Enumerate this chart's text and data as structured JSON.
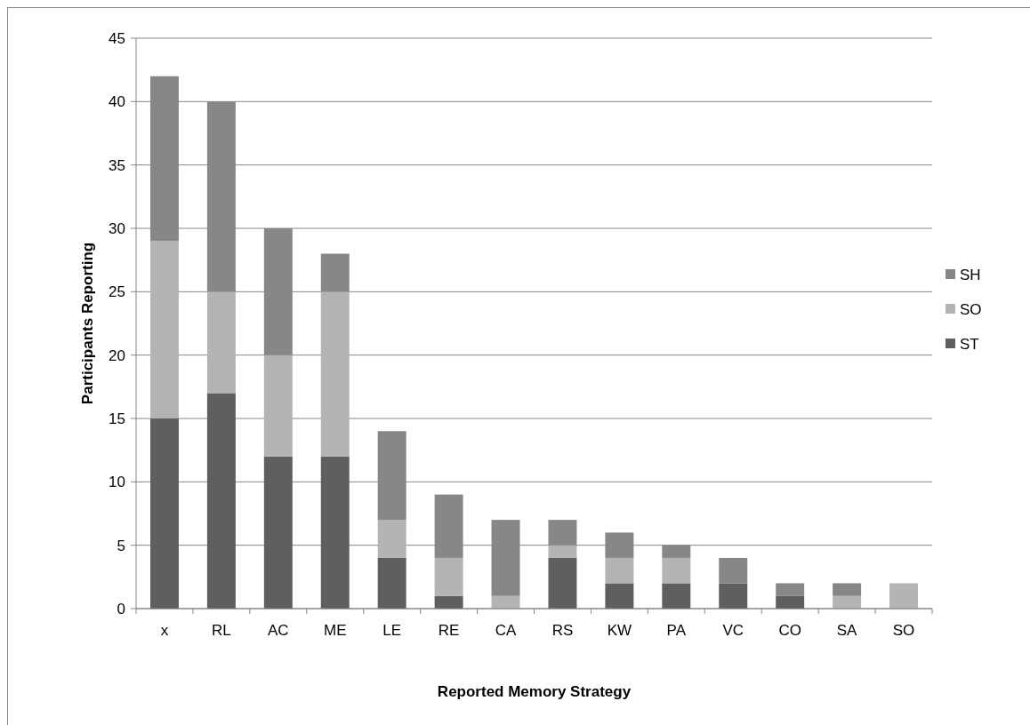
{
  "chart_data": {
    "type": "bar",
    "stacked": true,
    "xlabel": "Reported Memory Strategy",
    "ylabel": "Participants Reporting",
    "categories": [
      "x",
      "RL",
      "AC",
      "ME",
      "LE",
      "RE",
      "CA",
      "RS",
      "KW",
      "PA",
      "VC",
      "CO",
      "SA",
      "SO"
    ],
    "series": [
      {
        "name": "ST",
        "color": "#5f5f5f",
        "values": [
          15,
          17,
          12,
          12,
          4,
          1,
          0,
          4,
          2,
          2,
          2,
          1,
          0,
          0
        ]
      },
      {
        "name": "SO",
        "color": "#b4b4b4",
        "values": [
          14,
          8,
          8,
          13,
          3,
          3,
          1,
          1,
          2,
          2,
          0,
          0,
          1,
          2
        ]
      },
      {
        "name": "SH",
        "color": "#878787",
        "values": [
          13,
          15,
          10,
          3,
          7,
          5,
          6,
          2,
          2,
          1,
          2,
          1,
          1,
          0
        ]
      }
    ],
    "ylim": [
      0,
      45
    ],
    "yticks": [
      0,
      5,
      10,
      15,
      20,
      25,
      30,
      35,
      40,
      45
    ],
    "grid": "y",
    "legend": "right"
  }
}
